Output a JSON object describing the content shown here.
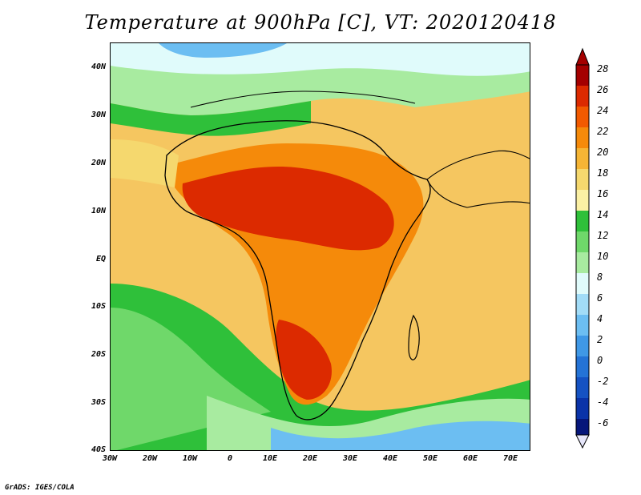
{
  "title": "Temperature at 900hPa [C], VT: 2020120418",
  "credit": "GrADS: IGES/COLA",
  "map": {
    "lat_labels": [
      "40N",
      "30N",
      "20N",
      "10N",
      "EQ",
      "10S",
      "20S",
      "30S",
      "40S"
    ],
    "lon_labels": [
      "30W",
      "20W",
      "10W",
      "0",
      "10E",
      "20E",
      "30E",
      "40E",
      "50E",
      "60E",
      "70E"
    ]
  },
  "colorbar": {
    "labels": [
      "28",
      "26",
      "24",
      "22",
      "20",
      "18",
      "16",
      "14",
      "12",
      "10",
      "8",
      "6",
      "4",
      "2",
      "0",
      "-2",
      "-4",
      "-6"
    ],
    "colors": [
      "#a40000",
      "#dc2a00",
      "#f25a00",
      "#f58a0a",
      "#f5b535",
      "#f5d86e",
      "#fbf0a4",
      "#2fc03a",
      "#6fd86a",
      "#a8eba0",
      "#e0fbfb",
      "#a2dcf7",
      "#6cbef2",
      "#3f98e6",
      "#2473d6",
      "#1552c2",
      "#0a33a8",
      "#06167a"
    ]
  }
}
